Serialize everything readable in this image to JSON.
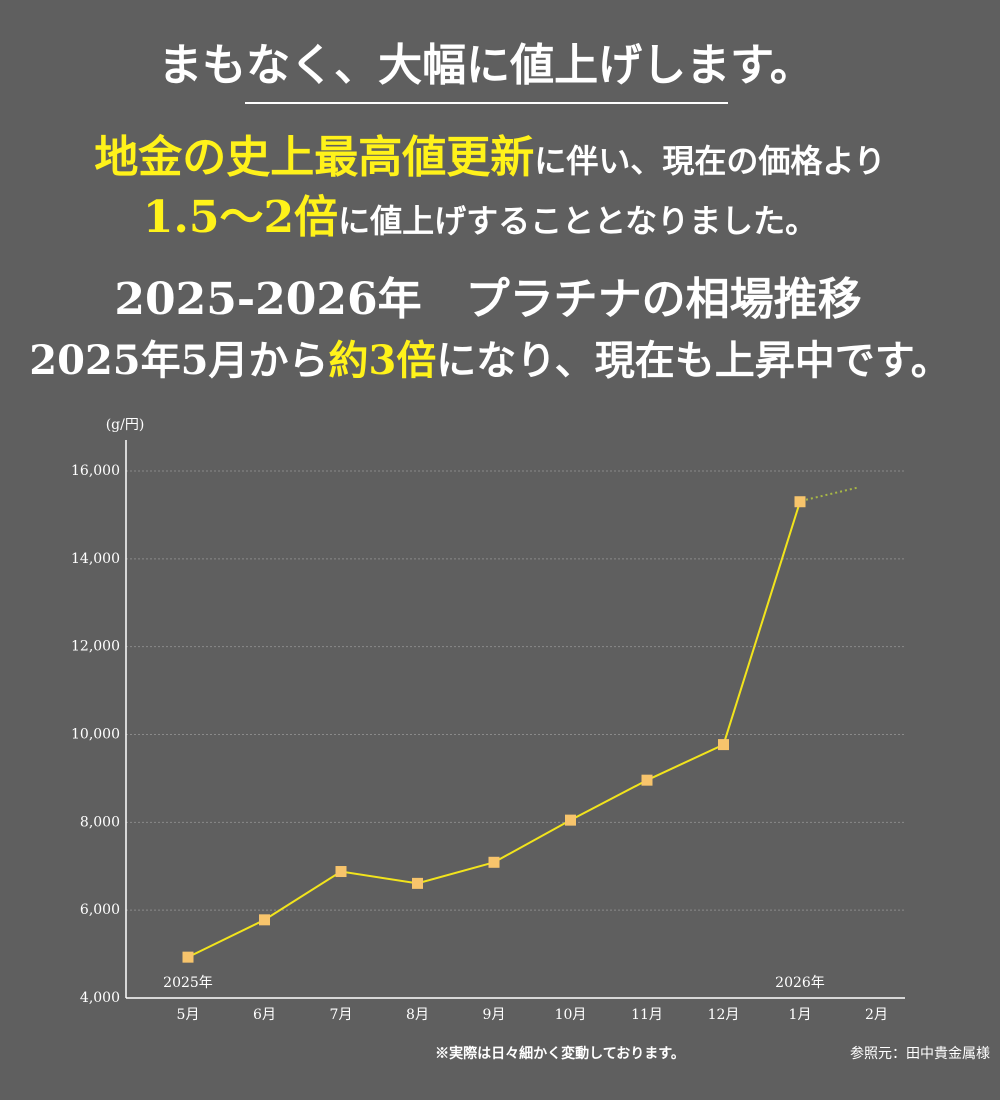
{
  "headline": "まもなく、大幅に値上げします。",
  "lead": {
    "line1": {
      "highlight": "地金の史上最高値更新",
      "rest": "に伴い、現在の価格より"
    },
    "line2": {
      "highlight": "1.5〜2倍",
      "rest": "に値上げすることとなりました。"
    }
  },
  "section_title": "2025-2026年　プラチナの相場推移",
  "summary": {
    "before": "2025年5月から",
    "highlight": "約3倍",
    "after": "になり、現在も上昇中です。"
  },
  "chart_data": {
    "type": "line",
    "y_label": "(g/円)",
    "categories": [
      "5月",
      "6月",
      "7月",
      "8月",
      "9月",
      "10月",
      "11月",
      "12月",
      "1月",
      "2月"
    ],
    "series": [
      {
        "name": "プラチナ",
        "color": "#f2e41c",
        "marker_color": "#f7c46c",
        "values": [
          4930,
          5780,
          6880,
          6610,
          7090,
          8050,
          8960,
          9770,
          15300,
          null
        ]
      }
    ],
    "ylim": [
      4000,
      16000
    ],
    "yticks": [
      {
        "value": 4000,
        "label": "4,000"
      },
      {
        "value": 6000,
        "label": "6,000"
      },
      {
        "value": 8000,
        "label": "8,000"
      },
      {
        "value": 10000,
        "label": "10,000"
      },
      {
        "value": 12000,
        "label": "12,000"
      },
      {
        "value": 14000,
        "label": "14,000"
      },
      {
        "value": 16000,
        "label": "16,000"
      }
    ],
    "grid": true,
    "year_labels": [
      {
        "category": "5月",
        "label": "2025年"
      },
      {
        "category": "1月",
        "label": "2026年"
      }
    ],
    "note": "※実際は日々細かく変動しております。",
    "source": "参照元：田中貴金属様"
  }
}
